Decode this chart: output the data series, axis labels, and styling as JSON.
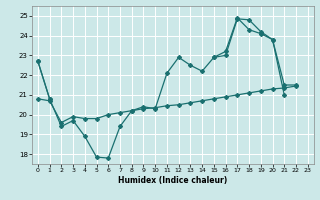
{
  "xlabel": "Humidex (Indice chaleur)",
  "bg_color": "#cce8e8",
  "grid_color": "#ffffff",
  "line_color": "#1a7070",
  "xlim": [
    -0.5,
    23.5
  ],
  "ylim": [
    17.5,
    25.5
  ],
  "yticks": [
    18,
    19,
    20,
    21,
    22,
    23,
    24,
    25
  ],
  "xticks": [
    0,
    1,
    2,
    3,
    4,
    5,
    6,
    7,
    8,
    9,
    10,
    11,
    12,
    13,
    14,
    15,
    16,
    17,
    18,
    19,
    20,
    21,
    22,
    23
  ],
  "series1_x": [
    0,
    1,
    2,
    3,
    4,
    5,
    6,
    7,
    8,
    9,
    10,
    11,
    12,
    13,
    14,
    15,
    16,
    17,
    18,
    19,
    20,
    21,
    22,
    23
  ],
  "series1_y": [
    22.7,
    20.8,
    19.4,
    19.7,
    18.9,
    17.85,
    17.8,
    19.4,
    20.2,
    20.4,
    20.3,
    22.1,
    22.9,
    22.5,
    22.2,
    22.9,
    23.0,
    24.85,
    24.8,
    24.2,
    23.8,
    21.0,
    null,
    null
  ],
  "series2_x": [
    0,
    1,
    2,
    3,
    4,
    5,
    6,
    7,
    8,
    9,
    10,
    11,
    12,
    13,
    14,
    15,
    16,
    17,
    18,
    19,
    20,
    21,
    22,
    23
  ],
  "series2_y": [
    22.7,
    20.8,
    null,
    null,
    null,
    null,
    null,
    null,
    null,
    null,
    null,
    null,
    null,
    null,
    null,
    22.9,
    23.2,
    24.9,
    24.3,
    24.1,
    23.8,
    21.5,
    21.5,
    null
  ],
  "series3_x": [
    0,
    1,
    2,
    3,
    4,
    5,
    6,
    7,
    8,
    9,
    10,
    11,
    12,
    13,
    14,
    15,
    16,
    17,
    18,
    19,
    20,
    21,
    22,
    23
  ],
  "series3_y": [
    20.8,
    20.7,
    19.6,
    19.9,
    19.8,
    19.8,
    20.0,
    20.1,
    20.2,
    20.3,
    20.35,
    20.45,
    20.5,
    20.6,
    20.7,
    20.8,
    20.9,
    21.0,
    21.1,
    21.2,
    21.3,
    21.35,
    21.45,
    null
  ]
}
